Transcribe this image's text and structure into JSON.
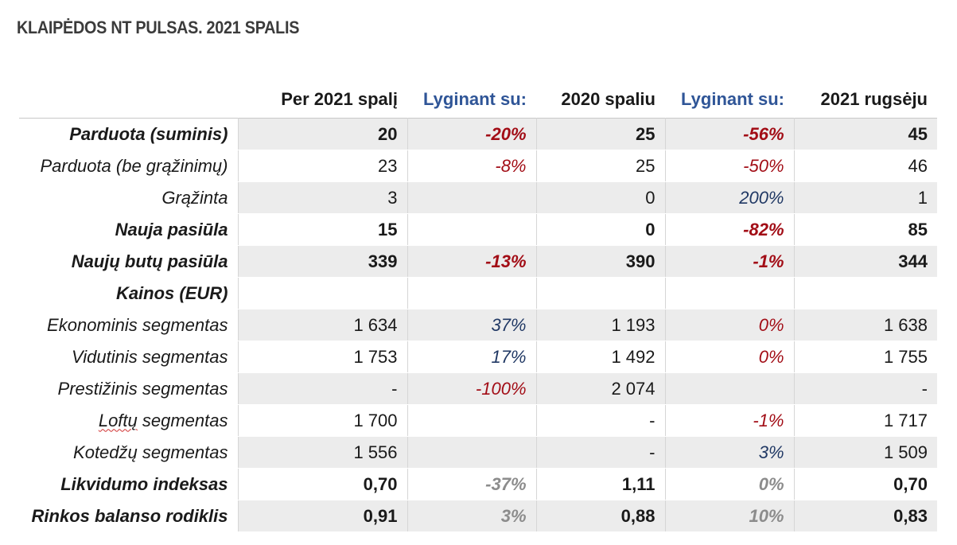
{
  "title": "KLAIPĖDOS NT PULSAS. 2021 SPALIS",
  "headers": [
    "",
    "Per 2021 spalį",
    "Lyginant su:",
    "2020 spaliu",
    "Lyginant su:",
    "2021 rugsėju"
  ],
  "rows": [
    {
      "label": "Parduota (suminis)",
      "c1": "20",
      "c2": "-20%",
      "c3": "25",
      "c4": "-56%",
      "c5": "45"
    },
    {
      "label": "Parduota (be grąžinimų)",
      "c1": "23",
      "c2": "-8%",
      "c3": "25",
      "c4": "-50%",
      "c5": "46"
    },
    {
      "label": "Grąžinta",
      "c1": "3",
      "c2": "",
      "c3": "0",
      "c4": "200%",
      "c5": "1"
    },
    {
      "label": "Nauja pasiūla",
      "c1": "15",
      "c2": "",
      "c3": "0",
      "c4": "-82%",
      "c5": "85"
    },
    {
      "label": "Naujų butų pasiūla",
      "c1": "339",
      "c2": "-13%",
      "c3": "390",
      "c4": "-1%",
      "c5": "344"
    },
    {
      "label": "Kainos (EUR)",
      "c1": "",
      "c2": "",
      "c3": "",
      "c4": "",
      "c5": ""
    },
    {
      "label": "Ekonominis segmentas",
      "c1": "1 634",
      "c2": "37%",
      "c3": "1 193",
      "c4": "0%",
      "c5": "1 638"
    },
    {
      "label": "Vidutinis segmentas",
      "c1": "1 753",
      "c2": "17%",
      "c3": "1 492",
      "c4": "0%",
      "c5": "1 755"
    },
    {
      "label": "Prestižinis segmentas",
      "c1": "-",
      "c2": "-100%",
      "c3": "2 074",
      "c4": "",
      "c5": "-"
    },
    {
      "label_prefix": "Loftų",
      "label_suffix": " segmentas",
      "c1": "1 700",
      "c2": "",
      "c3": "-",
      "c4": "-1%",
      "c5": "1 717"
    },
    {
      "label": "Kotedžų segmentas",
      "c1": "1 556",
      "c2": "",
      "c3": "-",
      "c4": "3%",
      "c5": "1 509"
    },
    {
      "label": "Likvidumo indeksas",
      "c1": "0,70",
      "c2": "-37%",
      "c3": "1,11",
      "c4": "0%",
      "c5": "0,70"
    },
    {
      "label": "Rinkos balanso rodiklis",
      "c1": "0,91",
      "c2": "3%",
      "c3": "0,88",
      "c4": "10%",
      "c5": "0,83"
    }
  ],
  "colors": {
    "negative": "#a20d16",
    "positive": "#203864",
    "neutral": "#8c8c8c",
    "header_blue": "#2f5597",
    "shade": "#ececec"
  }
}
